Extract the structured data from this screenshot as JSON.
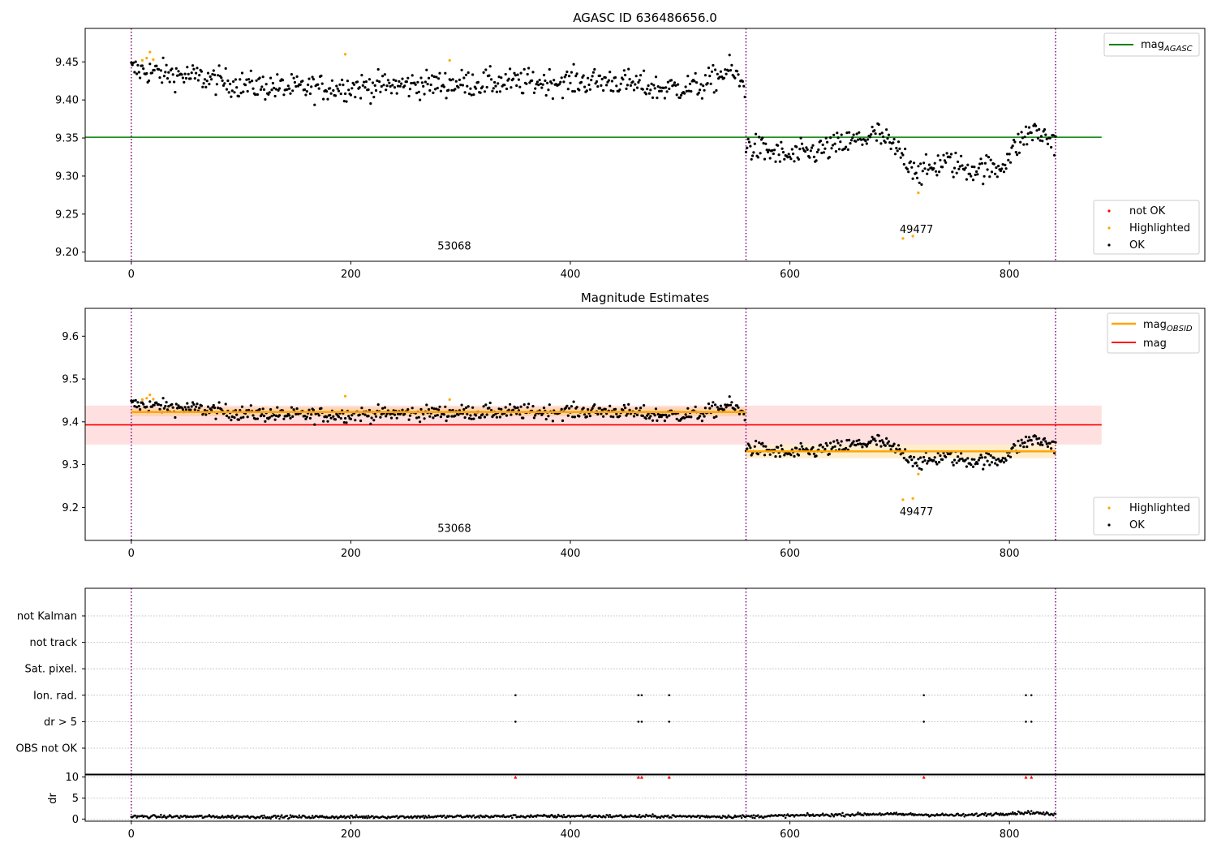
{
  "chart_data": [
    {
      "type": "scatter",
      "title": "AGASC ID 636486656.0",
      "xlabel": "",
      "ylabel": "",
      "xlim": [
        -42,
        978
      ],
      "ylim": [
        9.188,
        9.494
      ],
      "xticks": [
        0,
        200,
        400,
        600,
        800
      ],
      "yticks": [
        9.2,
        9.25,
        9.3,
        9.35,
        9.4,
        9.45
      ],
      "xtick_labels": [
        "0",
        "200",
        "400",
        "600",
        "800"
      ],
      "ytick_labels": [
        "9.20",
        "9.25",
        "9.30",
        "9.35",
        "9.40",
        "9.45"
      ],
      "vlines": [
        0,
        560,
        842
      ],
      "obsid_labels": [
        {
          "text": "53068",
          "x": 279,
          "y": 9.2035
        },
        {
          "text": "49477",
          "x": 700,
          "y": 9.2255
        }
      ],
      "hlines": [
        {
          "name": "mag_AGASC",
          "y": 9.351,
          "color": "#008000",
          "x": [
            -42,
            884
          ]
        }
      ],
      "segments": [
        {
          "x0": 0,
          "x1": 560,
          "base": 9.422,
          "trend": [
            [
              0,
              9.44
            ],
            [
              60,
              9.43
            ],
            [
              100,
              9.42
            ],
            [
              150,
              9.415
            ],
            [
              300,
              9.422
            ],
            [
              440,
              9.425
            ],
            [
              480,
              9.415
            ],
            [
              520,
              9.418
            ],
            [
              545,
              9.44
            ],
            [
              560,
              9.415
            ]
          ],
          "spread": 0.011
        },
        {
          "x0": 560,
          "x1": 842,
          "base": 9.33,
          "trend": [
            [
              560,
              9.34
            ],
            [
              600,
              9.325
            ],
            [
              640,
              9.338
            ],
            [
              680,
              9.355
            ],
            [
              700,
              9.33
            ],
            [
              720,
              9.303
            ],
            [
              740,
              9.32
            ],
            [
              760,
              9.31
            ],
            [
              790,
              9.31
            ],
            [
              810,
              9.345
            ],
            [
              820,
              9.36
            ],
            [
              842,
              9.345
            ]
          ],
          "spread": 0.011
        }
      ],
      "highlighted_points": [
        {
          "x": 10,
          "y": 9.452
        },
        {
          "x": 14,
          "y": 9.455
        },
        {
          "x": 17,
          "y": 9.463
        },
        {
          "x": 20,
          "y": 9.453
        },
        {
          "x": 195,
          "y": 9.46
        },
        {
          "x": 290,
          "y": 9.452
        },
        {
          "x": 703,
          "y": 9.218
        },
        {
          "x": 712,
          "y": 9.221
        },
        {
          "x": 717,
          "y": 9.278
        }
      ],
      "legend": {
        "position": "upper-right",
        "entries": [
          "mag_AGASC"
        ]
      },
      "legend2": {
        "position": "lower-right",
        "entries": [
          "not OK",
          "Highlighted",
          "OK"
        ]
      },
      "colors": {
        "ok": "#000000",
        "highlighted": "#ffa500",
        "not_ok": "#ff0000",
        "agasc": "#008000",
        "vline": "#800080"
      }
    },
    {
      "type": "scatter",
      "title": "Magnitude Estimates",
      "xlabel": "",
      "ylabel": "",
      "xlim": [
        -42,
        978
      ],
      "ylim": [
        9.123,
        9.665
      ],
      "xticks": [
        0,
        200,
        400,
        600,
        800
      ],
      "yticks": [
        9.2,
        9.3,
        9.4,
        9.5,
        9.6
      ],
      "xtick_labels": [
        "0",
        "200",
        "400",
        "600",
        "800"
      ],
      "ytick_labels": [
        "9.2",
        "9.3",
        "9.4",
        "9.5",
        "9.6"
      ],
      "vlines": [
        0,
        560,
        842
      ],
      "obsid_labels": [
        {
          "text": "53068",
          "x": 279,
          "y": 9.143
        },
        {
          "text": "49477",
          "x": 700,
          "y": 9.182
        }
      ],
      "mag": {
        "y": 9.393,
        "band": [
          9.347,
          9.438
        ],
        "x": [
          -42,
          884
        ],
        "color": "#ff0000"
      },
      "mag_obsid": [
        {
          "x": [
            0,
            560
          ],
          "y": 9.423,
          "band": [
            9.413,
            9.434
          ]
        },
        {
          "x": [
            560,
            842
          ],
          "y": 9.331,
          "band": [
            9.315,
            9.347
          ]
        }
      ],
      "legend": {
        "position": "upper-right",
        "entries": [
          "mag_OBSID",
          "mag"
        ]
      },
      "legend2": {
        "position": "lower-right",
        "entries": [
          "Highlighted",
          "OK"
        ]
      }
    },
    {
      "type": "scatter",
      "title": "",
      "xlim": [
        -42,
        978
      ],
      "flag_rows": [
        "not Kalman",
        "not track",
        "Sat. pixel.",
        "Ion. rad.",
        "dr > 5",
        "OBS not OK"
      ],
      "flag_points": {
        "Ion. rad.": [
          350,
          462,
          465,
          490,
          722,
          815,
          820
        ],
        "dr > 5": [
          350,
          462,
          465,
          490,
          722,
          815,
          820
        ]
      },
      "vlines": [
        0,
        560,
        842
      ]
    },
    {
      "type": "line",
      "ylabel": "dr",
      "xlim": [
        -42,
        978
      ],
      "ylim": [
        -0.5,
        10.5
      ],
      "yticks": [
        0,
        5,
        10
      ],
      "ytick_labels": [
        "0",
        "5",
        "10"
      ],
      "xticks": [
        0,
        200,
        400,
        600,
        800
      ],
      "xtick_labels": [
        "0",
        "200",
        "400",
        "600",
        "800"
      ],
      "dr_level": [
        [
          0,
          0.6
        ],
        [
          200,
          0.5
        ],
        [
          400,
          0.7
        ],
        [
          560,
          0.6
        ],
        [
          680,
          1.2
        ],
        [
          760,
          0.9
        ],
        [
          820,
          1.6
        ],
        [
          842,
          1.0
        ]
      ],
      "dr_clipped": [
        350,
        462,
        465,
        490,
        722,
        815,
        820
      ],
      "vlines": [
        0,
        560,
        842
      ]
    }
  ]
}
